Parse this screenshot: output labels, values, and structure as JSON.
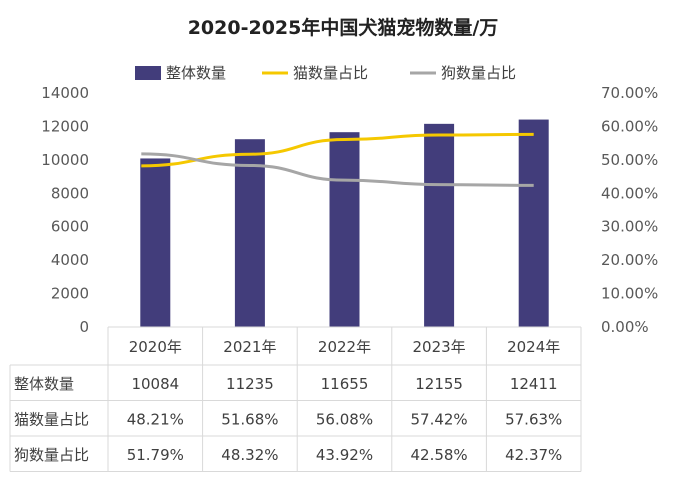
{
  "chart_data": {
    "type": "bar",
    "title": "2020-2025年中国犬猫宠物数量/万",
    "categories": [
      "2020年",
      "2021年",
      "2022年",
      "2023年",
      "2024年"
    ],
    "series": [
      {
        "name": "整体数量",
        "type": "bar",
        "axis": "left",
        "color": "#423D7B",
        "values": [
          10084,
          11235,
          11655,
          12155,
          12411
        ],
        "labels": [
          "10084",
          "11235",
          "11655",
          "12155",
          "12411"
        ]
      },
      {
        "name": "猫数量占比",
        "type": "line",
        "axis": "right",
        "color": "#F5C800",
        "values": [
          48.21,
          51.68,
          56.08,
          57.42,
          57.63
        ],
        "labels": [
          "48.21%",
          "51.68%",
          "56.08%",
          "57.42%",
          "57.63%"
        ]
      },
      {
        "name": "狗数量占比",
        "type": "line",
        "axis": "right",
        "color": "#A6A6A6",
        "values": [
          51.79,
          48.32,
          43.92,
          42.58,
          42.37
        ],
        "labels": [
          "51.79%",
          "48.32%",
          "43.92%",
          "42.58%",
          "42.37%"
        ]
      }
    ],
    "left_axis": {
      "ylim": [
        0,
        14000
      ],
      "ticks": [
        "0",
        "2000",
        "4000",
        "6000",
        "8000",
        "10000",
        "12000",
        "14000"
      ]
    },
    "right_axis": {
      "ylim": [
        0,
        70
      ],
      "ticks": [
        "0.00%",
        "10.00%",
        "20.00%",
        "30.00%",
        "40.00%",
        "50.00%",
        "60.00%",
        "70.00%"
      ]
    },
    "grid": true,
    "legend": "top",
    "data_table": true
  }
}
